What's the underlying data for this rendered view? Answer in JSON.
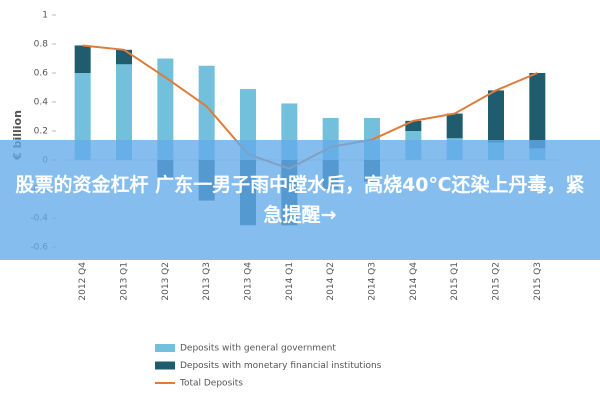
{
  "chart_data": {
    "type": "bar",
    "ylabel": "€ billion",
    "categories": [
      "2012 Q4",
      "2013 Q1",
      "2013 Q2",
      "2013 Q3",
      "2013 Q4",
      "2014 Q1",
      "2014 Q2",
      "2014 Q3",
      "2014 Q4",
      "2015 Q1",
      "2015 Q2",
      "2015 Q3"
    ],
    "series": [
      {
        "name": "Deposits with general government",
        "color": "#72c0dc",
        "values": [
          0.6,
          0.66,
          0.7,
          0.65,
          0.49,
          0.39,
          0.29,
          0.29,
          0.2,
          0.15,
          0.12,
          0.08
        ]
      },
      {
        "name": "Deposits with monetary financial institutions",
        "color": "#1f5d6e",
        "values": [
          0.19,
          0.1,
          -0.13,
          -0.28,
          -0.45,
          -0.45,
          -0.2,
          -0.15,
          0.07,
          0.17,
          0.36,
          0.52
        ]
      },
      {
        "name": "Total Deposits",
        "color": "#e07b39",
        "type": "line",
        "values": [
          0.79,
          0.76,
          0.57,
          0.37,
          0.04,
          -0.06,
          0.09,
          0.14,
          0.27,
          0.32,
          0.48,
          0.6
        ]
      }
    ],
    "ylim": [
      -0.6,
      1
    ],
    "yticks": [
      -0.6,
      -0.4,
      -0.2,
      0,
      0.2,
      0.4,
      0.6,
      0.8,
      1
    ]
  },
  "banner": {
    "text": "股票的资金杠杆 广东一男子雨中蹚水后，高烧40℃还染上丹毒，紧急提醒→"
  }
}
